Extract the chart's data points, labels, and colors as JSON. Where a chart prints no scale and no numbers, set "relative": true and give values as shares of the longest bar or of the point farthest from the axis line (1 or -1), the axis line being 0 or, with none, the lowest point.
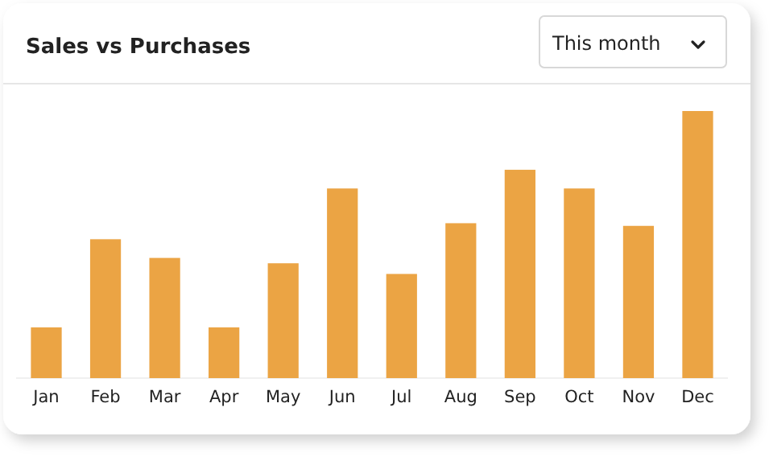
{
  "chart_data": {
    "type": "bar",
    "title": "Sales vs Purchases",
    "annotations": [
      "This month"
    ],
    "categories": [
      "Jan",
      "Feb",
      "Mar",
      "Apr",
      "May",
      "Jun",
      "Jul",
      "Aug",
      "Sep",
      "Oct",
      "Nov",
      "Dec"
    ],
    "values": [
      0.19,
      0.52,
      0.45,
      0.19,
      0.43,
      0.71,
      0.39,
      0.58,
      0.78,
      0.71,
      0.57,
      1
    ],
    "color": "#eba444",
    "relative": true
  }
}
